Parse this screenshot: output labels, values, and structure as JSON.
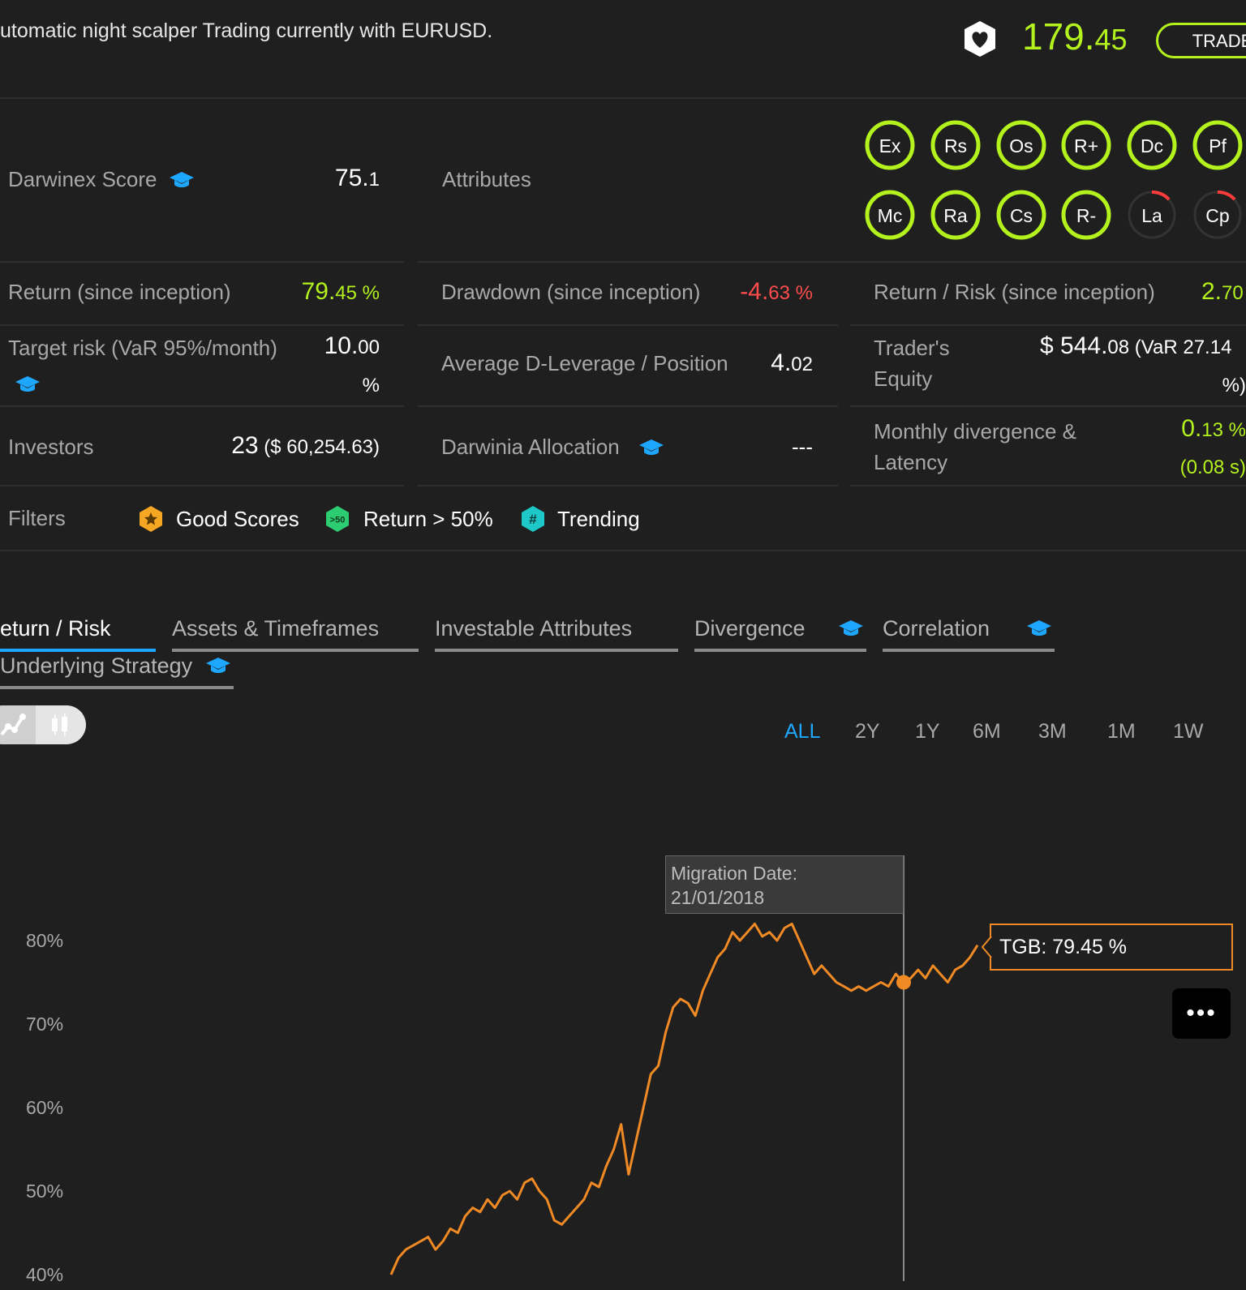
{
  "header": {
    "description": "utomatic night scalper Trading currently with EURUSD.",
    "price_int": "179.",
    "price_dec": "45",
    "trade_label": "TRADE",
    "accent": "#b4f21e"
  },
  "score": {
    "label": "Darwinex Score",
    "value_int": "75.",
    "value_dec": "1",
    "attributes_label": "Attributes"
  },
  "attributes": [
    {
      "code": "Ex",
      "status": "full"
    },
    {
      "code": "Rs",
      "status": "full"
    },
    {
      "code": "Os",
      "status": "full"
    },
    {
      "code": "R+",
      "status": "full"
    },
    {
      "code": "Dc",
      "status": "full"
    },
    {
      "code": "Pf",
      "status": "full"
    },
    {
      "code": "Mc",
      "status": "full"
    },
    {
      "code": "Ra",
      "status": "full"
    },
    {
      "code": "Cs",
      "status": "full"
    },
    {
      "code": "R-",
      "status": "full"
    },
    {
      "code": "La",
      "status": "low"
    },
    {
      "code": "Cp",
      "status": "low"
    }
  ],
  "stats": {
    "return_label": "Return (since inception)",
    "return_int": "79.",
    "return_dec": "45 %",
    "drawdown_label": "Drawdown (since inception)",
    "drawdown_int": "-4.",
    "drawdown_dec": "63 %",
    "rr_label": "Return / Risk (since inception)",
    "rr_int": "2.",
    "rr_dec": "70",
    "target_label": "Target risk (VaR 95%/month)",
    "target_int": "10.",
    "target_dec": "00",
    "target_unit": "%",
    "leverage_label": "Average D-Leverage / Position",
    "leverage_int": "4.",
    "leverage_dec": "02",
    "equity_label_1": "Trader's",
    "equity_label_2": "Equity",
    "equity_prefix": "$ ",
    "equity_int": "544.",
    "equity_dec": "08",
    "equity_var": " (VaR 27.14",
    "equity_var_end": "%)",
    "investors_label": "Investors",
    "investors_count": "23",
    "investors_amount": " ($ 60,254.63)",
    "allocation_label": "Darwinia Allocation",
    "allocation_value": "---",
    "divergence_label_1": "Monthly divergence &",
    "divergence_label_2": "Latency",
    "divergence_int": "0.",
    "divergence_dec": "13 %",
    "latency_value": "(0.08 s)"
  },
  "filters": {
    "label": "Filters",
    "items": [
      {
        "label": "Good Scores",
        "icon": "star-badge-icon",
        "color": "#f5a623"
      },
      {
        "label": "Return > 50%",
        "icon": "return-50-badge-icon",
        "color": "#2ecc71",
        "badge_text": ">50"
      },
      {
        "label": "Trending",
        "icon": "hashtag-badge-icon",
        "color": "#1ec8c8",
        "badge_text": "#"
      }
    ]
  },
  "tabs": [
    {
      "label": "eturn / Risk",
      "active": true
    },
    {
      "label": "Assets & Timeframes"
    },
    {
      "label": "Investable Attributes"
    },
    {
      "label": "Divergence"
    },
    {
      "label": "Correlation"
    },
    {
      "label": "Underlying Strategy"
    }
  ],
  "ranges": [
    "ALL",
    "2Y",
    "1Y",
    "6M",
    "3M",
    "1M",
    "1W"
  ],
  "chart_data": {
    "type": "line",
    "title": "",
    "xlabel": "",
    "ylabel": "",
    "y_tick_labels": [
      "80%",
      "70%",
      "60%",
      "50%",
      "40%"
    ],
    "ylim": [
      40,
      80
    ],
    "grid": false,
    "series": [
      {
        "name": "TGB",
        "color": "#f08a24",
        "values": [
          40,
          42,
          43,
          43.5,
          44,
          44.5,
          43,
          44,
          45.5,
          45,
          47,
          48,
          47.5,
          49,
          48,
          49.5,
          50,
          49,
          51,
          51.5,
          50,
          49,
          46.5,
          46,
          47,
          48,
          49,
          51,
          50.5,
          53,
          55,
          58,
          52,
          56,
          60,
          64,
          65,
          69,
          72,
          73,
          72.5,
          71,
          74,
          76,
          78,
          79,
          81,
          80,
          81,
          82,
          80.5,
          81,
          80,
          81.5,
          82,
          80,
          78,
          76,
          77,
          76,
          75,
          74.5,
          74,
          74.5,
          74,
          74.5,
          75,
          74.5,
          76,
          75,
          75.5,
          76.5,
          75.5,
          77,
          76,
          75,
          76.5,
          77,
          78,
          79.45
        ]
      }
    ],
    "migration_tooltip_title": "Migration Date:",
    "migration_tooltip_date": "21/01/2018",
    "current_label": "TGB: 79.45 %"
  },
  "more_label": "•••"
}
